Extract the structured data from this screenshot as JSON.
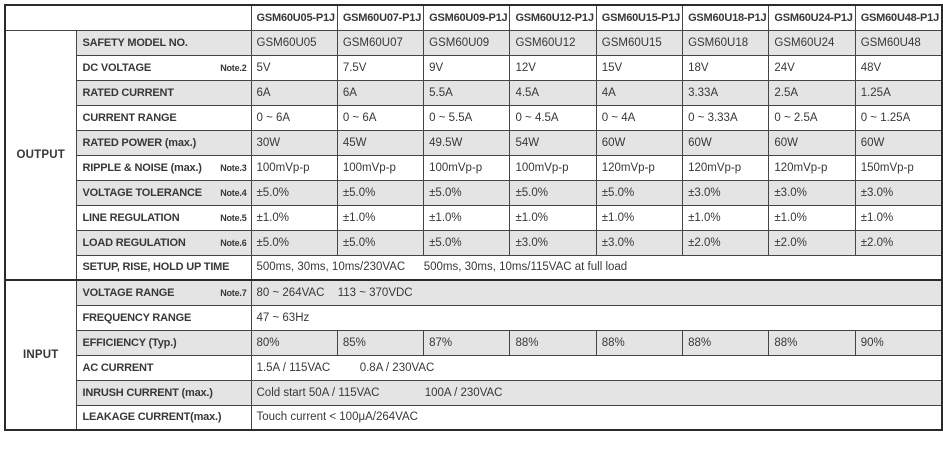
{
  "models": [
    "GSM60U05-P1J",
    "GSM60U07-P1J",
    "GSM60U09-P1J",
    "GSM60U12-P1J",
    "GSM60U15-P1J",
    "GSM60U18-P1J",
    "GSM60U24-P1J",
    "GSM60U48-P1J"
  ],
  "sections": [
    {
      "key": "output",
      "label": "OUTPUT",
      "row_count": 10
    },
    {
      "key": "input",
      "label": "INPUT",
      "row_count": 6
    }
  ],
  "rows": [
    {
      "key": "safety-model-no",
      "label": "SAFETY MODEL NO.",
      "note": "",
      "values": [
        "GSM60U05",
        "GSM60U07",
        "GSM60U09",
        "GSM60U12",
        "GSM60U15",
        "GSM60U18",
        "GSM60U24",
        "GSM60U48"
      ]
    },
    {
      "key": "dc-voltage",
      "label": "DC VOLTAGE",
      "note": "Note.2",
      "values": [
        "5V",
        "7.5V",
        "9V",
        "12V",
        "15V",
        "18V",
        "24V",
        "48V"
      ]
    },
    {
      "key": "rated-current",
      "label": "RATED CURRENT",
      "note": "",
      "values": [
        "6A",
        "6A",
        "5.5A",
        "4.5A",
        "4A",
        "3.33A",
        "2.5A",
        "1.25A"
      ]
    },
    {
      "key": "current-range",
      "label": "CURRENT RANGE",
      "note": "",
      "values": [
        "0 ~ 6A",
        "0 ~ 6A",
        "0 ~ 5.5A",
        "0 ~ 4.5A",
        "0 ~ 4A",
        "0 ~ 3.33A",
        "0 ~ 2.5A",
        "0 ~ 1.25A"
      ]
    },
    {
      "key": "rated-power",
      "label": "RATED POWER (max.)",
      "note": "",
      "values": [
        "30W",
        "45W",
        "49.5W",
        "54W",
        "60W",
        "60W",
        "60W",
        "60W"
      ]
    },
    {
      "key": "ripple-noise",
      "label": "RIPPLE & NOISE (max.)",
      "note": "Note.3",
      "values": [
        "100mVp-p",
        "100mVp-p",
        "100mVp-p",
        "100mVp-p",
        "120mVp-p",
        "120mVp-p",
        "120mVp-p",
        "150mVp-p"
      ]
    },
    {
      "key": "voltage-tolerance",
      "label": "VOLTAGE TOLERANCE",
      "note": "Note.4",
      "values": [
        "±5.0%",
        "±5.0%",
        "±5.0%",
        "±5.0%",
        "±5.0%",
        "±3.0%",
        "±3.0%",
        "±3.0%"
      ]
    },
    {
      "key": "line-regulation",
      "label": "LINE REGULATION",
      "note": "Note.5",
      "values": [
        "±1.0%",
        "±1.0%",
        "±1.0%",
        "±1.0%",
        "±1.0%",
        "±1.0%",
        "±1.0%",
        "±1.0%"
      ]
    },
    {
      "key": "load-regulation",
      "label": "LOAD REGULATION",
      "note": "Note.6",
      "values": [
        "±5.0%",
        "±5.0%",
        "±5.0%",
        "±3.0%",
        "±3.0%",
        "±2.0%",
        "±2.0%",
        "±2.0%"
      ]
    },
    {
      "key": "setup-rise-hold-up-time",
      "label": "SETUP, RISE, HOLD UP TIME",
      "note": "",
      "merged": [
        "500ms, 30ms, 10ms/230VAC",
        "500ms, 30ms, 10ms/115VAC  at full load"
      ]
    },
    {
      "key": "voltage-range",
      "label": "VOLTAGE RANGE",
      "note": "Note.7",
      "merged": [
        "80 ~ 264VAC",
        "113 ~ 370VDC"
      ]
    },
    {
      "key": "frequency-range",
      "label": "FREQUENCY RANGE",
      "note": "",
      "merged": [
        "47 ~ 63Hz"
      ]
    },
    {
      "key": "efficiency",
      "label": "EFFICIENCY (Typ.)",
      "note": "",
      "values": [
        "80%",
        "85%",
        "87%",
        "88%",
        "88%",
        "88%",
        "88%",
        "90%"
      ]
    },
    {
      "key": "ac-current",
      "label": "AC CURRENT",
      "note": "",
      "merged": [
        "1.5A / 115VAC",
        "0.8A / 230VAC"
      ]
    },
    {
      "key": "inrush-current",
      "label": "INRUSH CURRENT (max.)",
      "note": "",
      "merged": [
        "Cold start  50A / 115VAC",
        "100A / 230VAC"
      ]
    },
    {
      "key": "leakage-current",
      "label": "LEAKAGE CURRENT(max.)",
      "note": "",
      "merged": [
        "Touch current < 100μA/264VAC"
      ]
    }
  ],
  "colors": {
    "row_shading": "#e4e4e4",
    "grid_line": "#454545",
    "outer_border": "#2a2a2a",
    "text": "#383838"
  }
}
